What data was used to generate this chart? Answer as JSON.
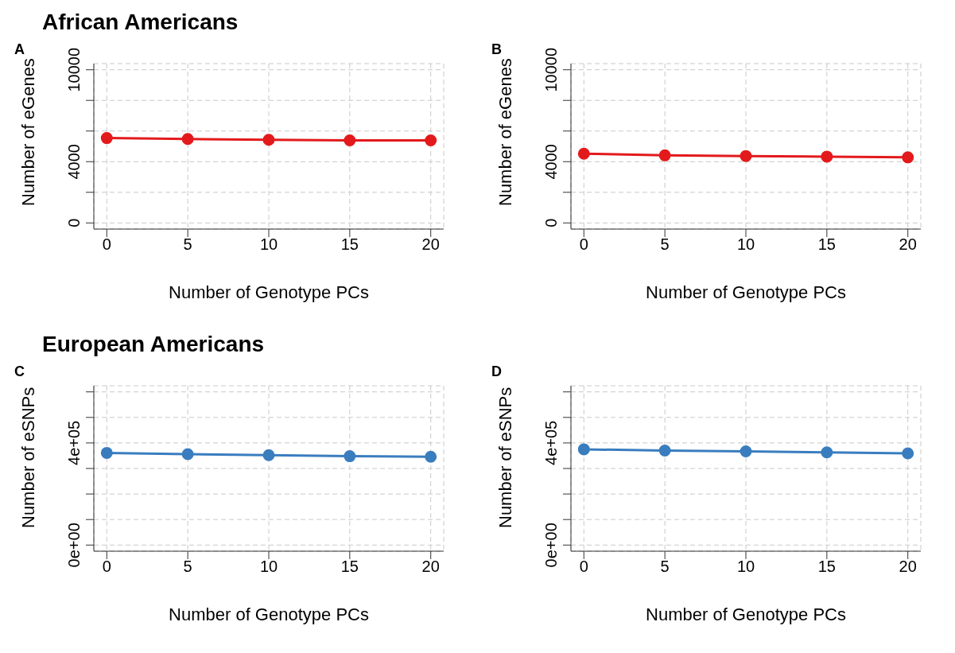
{
  "chart_data": [
    {
      "type": "line",
      "title": "African Americans",
      "annotations": [
        "A"
      ],
      "xlabel": "Number of Genotype PCs",
      "ylabel": "Number of eGenes",
      "x": [
        0,
        5,
        10,
        15,
        20
      ],
      "series": [
        {
          "color": "#e31a1c",
          "values": [
            5540,
            5480,
            5430,
            5390,
            5390
          ]
        }
      ],
      "xlim": [
        -0.8,
        20.8
      ],
      "xticks": [
        0,
        5,
        10,
        15,
        20
      ],
      "ylim": [
        -400,
        10400
      ],
      "yticks": [
        0,
        {
          "value": 2000,
          "label": null
        },
        4000,
        {
          "value": 6000,
          "label": null
        },
        {
          "value": 8000,
          "label": null
        },
        10000
      ],
      "grid": true,
      "marker": "circle",
      "line_style": "solid"
    },
    {
      "type": "line",
      "annotations": [
        "B"
      ],
      "xlabel": "Number of Genotype PCs",
      "ylabel": "Number of eGenes",
      "x": [
        0,
        5,
        10,
        15,
        20
      ],
      "series": [
        {
          "color": "#e31a1c",
          "values": [
            4520,
            4410,
            4370,
            4330,
            4280
          ]
        }
      ],
      "xlim": [
        -0.8,
        20.8
      ],
      "xticks": [
        0,
        5,
        10,
        15,
        20
      ],
      "ylim": [
        -400,
        10400
      ],
      "yticks": [
        0,
        {
          "value": 2000,
          "label": null
        },
        4000,
        {
          "value": 6000,
          "label": null
        },
        {
          "value": 8000,
          "label": null
        },
        10000
      ],
      "grid": true,
      "marker": "circle",
      "line_style": "solid"
    },
    {
      "type": "line",
      "title": "European Americans",
      "annotations": [
        "C"
      ],
      "xlabel": "Number of Genotype PCs",
      "ylabel": "Number of eSNPs",
      "x": [
        0,
        5,
        10,
        15,
        20
      ],
      "series": [
        {
          "color": "#3a7dbf",
          "values": [
            361000,
            356000,
            352000,
            348000,
            346000
          ]
        }
      ],
      "xlim": [
        -0.8,
        20.8
      ],
      "xticks": [
        0,
        5,
        10,
        15,
        20
      ],
      "ylim": [
        -24000,
        624000
      ],
      "yticks": [
        {
          "value": 0,
          "label": "0e+00"
        },
        {
          "value": 100000,
          "label": null
        },
        {
          "value": 200000,
          "label": null
        },
        {
          "value": 300000,
          "label": null
        },
        {
          "value": 400000,
          "label": "4e+05"
        },
        {
          "value": 500000,
          "label": null
        },
        {
          "value": 600000,
          "label": null
        }
      ],
      "grid": true,
      "marker": "circle",
      "line_style": "solid"
    },
    {
      "type": "line",
      "annotations": [
        "D"
      ],
      "xlabel": "Number of Genotype PCs",
      "ylabel": "Number of eSNPs",
      "x": [
        0,
        5,
        10,
        15,
        20
      ],
      "series": [
        {
          "color": "#3a7dbf",
          "values": [
            375000,
            370000,
            367000,
            363000,
            359000
          ]
        }
      ],
      "xlim": [
        -0.8,
        20.8
      ],
      "xticks": [
        0,
        5,
        10,
        15,
        20
      ],
      "ylim": [
        -24000,
        624000
      ],
      "yticks": [
        {
          "value": 0,
          "label": "0e+00"
        },
        {
          "value": 100000,
          "label": null
        },
        {
          "value": 200000,
          "label": null
        },
        {
          "value": 300000,
          "label": null
        },
        {
          "value": 400000,
          "label": "4e+05"
        },
        {
          "value": 500000,
          "label": null
        },
        {
          "value": 600000,
          "label": null
        }
      ],
      "grid": true,
      "marker": "circle",
      "line_style": "solid"
    }
  ]
}
